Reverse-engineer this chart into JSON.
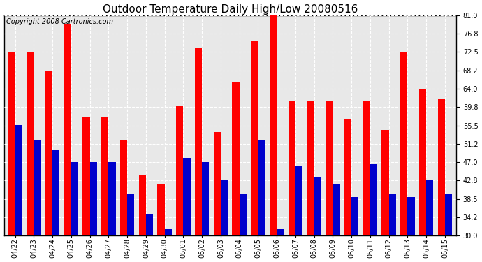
{
  "title": "Outdoor Temperature Daily High/Low 20080516",
  "copyright": "Copyright 2008 Cartronics.com",
  "dates": [
    "04/22",
    "04/23",
    "04/24",
    "04/25",
    "04/26",
    "04/27",
    "04/28",
    "04/29",
    "04/30",
    "05/01",
    "05/02",
    "05/03",
    "05/04",
    "05/05",
    "05/06",
    "05/07",
    "05/08",
    "05/09",
    "05/10",
    "05/11",
    "05/12",
    "05/13",
    "05/14",
    "05/15"
  ],
  "highs": [
    72.5,
    72.5,
    68.2,
    79.0,
    57.5,
    57.5,
    52.0,
    44.0,
    42.0,
    60.0,
    73.5,
    54.0,
    65.5,
    75.0,
    81.0,
    61.0,
    61.0,
    61.0,
    57.0,
    61.0,
    54.5,
    72.5,
    64.0,
    61.5
  ],
  "lows": [
    55.5,
    52.0,
    50.0,
    47.0,
    47.0,
    47.0,
    39.5,
    35.0,
    31.5,
    48.0,
    47.0,
    43.0,
    39.5,
    52.0,
    31.5,
    46.0,
    43.5,
    42.0,
    39.0,
    46.5,
    39.5,
    39.0,
    43.0,
    39.5
  ],
  "high_color": "#ff0000",
  "low_color": "#0000cc",
  "bg_color": "#ffffff",
  "ylim_min": 30.0,
  "ylim_max": 81.0,
  "yticks": [
    30.0,
    34.2,
    38.5,
    42.8,
    47.0,
    51.2,
    55.5,
    59.8,
    64.0,
    68.2,
    72.5,
    76.8,
    81.0
  ],
  "grid_color": "#aaaaaa",
  "title_fontsize": 11,
  "copyright_fontsize": 7,
  "bar_width": 0.38
}
